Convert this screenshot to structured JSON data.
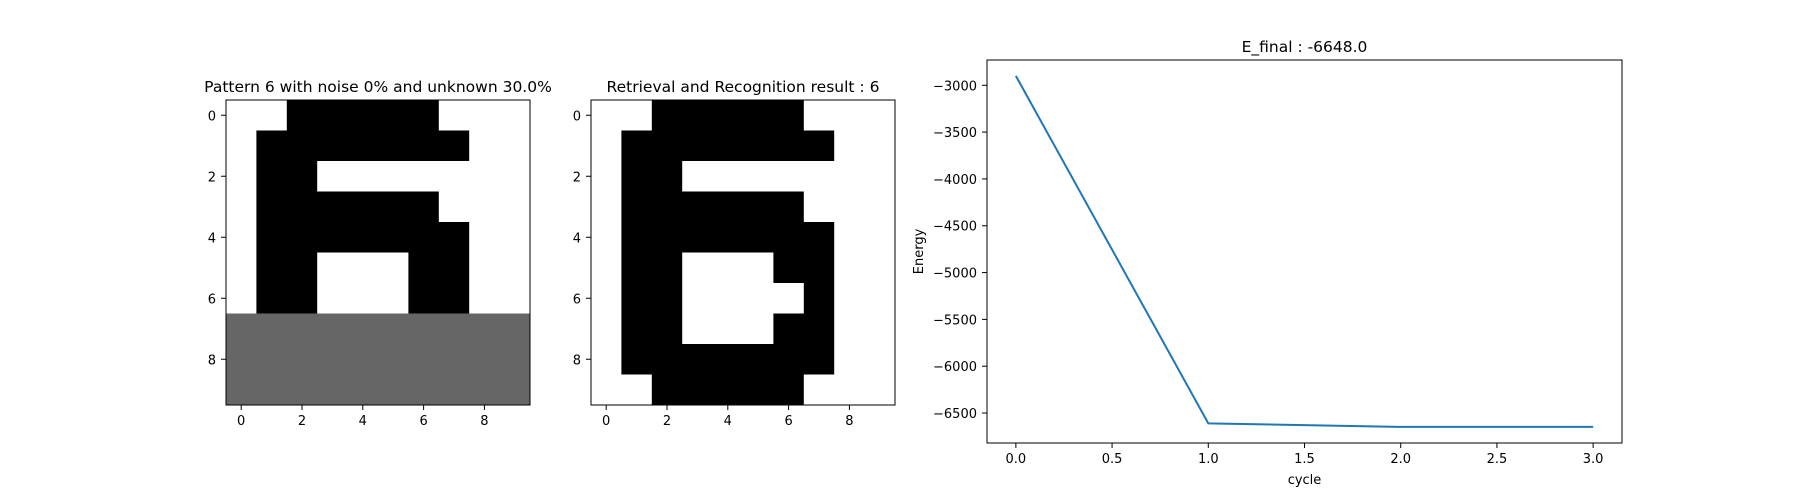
{
  "chart_data": [
    {
      "type": "heatmap",
      "title": "Pattern 6 with noise 0% and unknown 30.0%",
      "xticks": [
        0,
        2,
        4,
        6,
        8
      ],
      "yticks": [
        0,
        2,
        4,
        6,
        8
      ],
      "value_legend": {
        "1": "black",
        "0": "white",
        "-1": "gray (unknown)"
      },
      "grid": [
        [
          0,
          0,
          1,
          1,
          1,
          1,
          1,
          0,
          0,
          0
        ],
        [
          0,
          1,
          1,
          1,
          1,
          1,
          1,
          1,
          0,
          0
        ],
        [
          0,
          1,
          1,
          0,
          0,
          0,
          0,
          0,
          0,
          0
        ],
        [
          0,
          1,
          1,
          1,
          1,
          1,
          1,
          0,
          0,
          0
        ],
        [
          0,
          1,
          1,
          1,
          1,
          1,
          1,
          1,
          0,
          0
        ],
        [
          0,
          1,
          1,
          0,
          0,
          0,
          1,
          1,
          0,
          0
        ],
        [
          0,
          1,
          1,
          0,
          0,
          0,
          1,
          1,
          0,
          0
        ],
        [
          -1,
          -1,
          -1,
          -1,
          -1,
          -1,
          -1,
          -1,
          -1,
          -1
        ],
        [
          -1,
          -1,
          -1,
          -1,
          -1,
          -1,
          -1,
          -1,
          -1,
          -1
        ],
        [
          -1,
          -1,
          -1,
          -1,
          -1,
          -1,
          -1,
          -1,
          -1,
          -1
        ]
      ]
    },
    {
      "type": "heatmap",
      "title": "Retrieval and Recognition result : 6",
      "xticks": [
        0,
        2,
        4,
        6,
        8
      ],
      "yticks": [
        0,
        2,
        4,
        6,
        8
      ],
      "grid": [
        [
          0,
          0,
          1,
          1,
          1,
          1,
          1,
          0,
          0,
          0
        ],
        [
          0,
          1,
          1,
          1,
          1,
          1,
          1,
          1,
          0,
          0
        ],
        [
          0,
          1,
          1,
          0,
          0,
          0,
          0,
          0,
          0,
          0
        ],
        [
          0,
          1,
          1,
          1,
          1,
          1,
          1,
          0,
          0,
          0
        ],
        [
          0,
          1,
          1,
          1,
          1,
          1,
          1,
          1,
          0,
          0
        ],
        [
          0,
          1,
          1,
          0,
          0,
          0,
          1,
          1,
          0,
          0
        ],
        [
          0,
          1,
          1,
          0,
          0,
          0,
          0,
          1,
          0,
          0
        ],
        [
          0,
          1,
          1,
          0,
          0,
          0,
          1,
          1,
          0,
          0
        ],
        [
          0,
          1,
          1,
          1,
          1,
          1,
          1,
          1,
          0,
          0
        ],
        [
          0,
          0,
          1,
          1,
          1,
          1,
          1,
          0,
          0,
          0
        ]
      ]
    },
    {
      "type": "line",
      "title": "E_final : -6648.0",
      "xlabel": "cycle",
      "ylabel": "Energy",
      "x": [
        0,
        1,
        2,
        3
      ],
      "series": [
        {
          "values": [
            -2900,
            -6610,
            -6648,
            -6648
          ],
          "color": "#1f77b4"
        }
      ],
      "xlim": [
        -0.15,
        3.15
      ],
      "ylim": [
        -6820,
        -2730
      ],
      "xticks": [
        0.0,
        0.5,
        1.0,
        1.5,
        2.0,
        2.5,
        3.0
      ],
      "yticks": [
        -3000,
        -3500,
        -4000,
        -4500,
        -5000,
        -5500,
        -6000,
        -6500
      ],
      "grid": false
    }
  ]
}
